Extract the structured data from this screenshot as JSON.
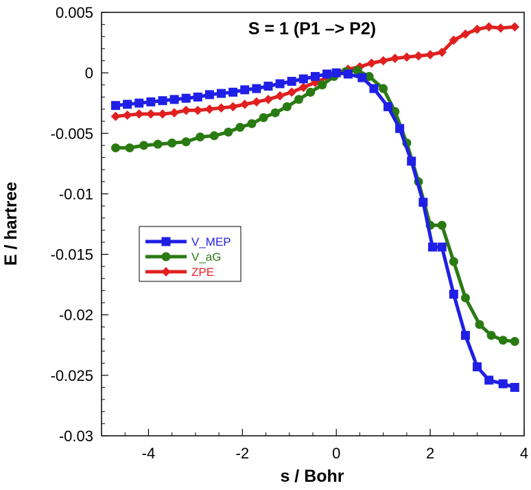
{
  "chart_data": {
    "type": "line",
    "title": "S = 1 (P1 –> P2)",
    "xlabel": "s / Bohr",
    "ylabel": "E / hartree",
    "xlim": [
      -5,
      4
    ],
    "ylim": [
      -0.03,
      0.005
    ],
    "xticks": [
      -4,
      -2,
      0,
      2,
      4
    ],
    "xtick_labels": [
      "-4",
      "-2",
      "0",
      "2",
      "4"
    ],
    "yticks": [
      0.005,
      0,
      -0.005,
      -0.01,
      -0.015,
      -0.02,
      -0.025,
      -0.03
    ],
    "ytick_labels": [
      "0.005",
      "0",
      "-0.005",
      "-0.01",
      "-0.015",
      "-0.02",
      "-0.025",
      "-0.03"
    ],
    "grid": false,
    "legend_position": "middle-left",
    "series": [
      {
        "name": "V_MEP",
        "color": "#1f1fe6",
        "marker": "square",
        "x": [
          -4.7,
          -4.45,
          -4.2,
          -3.95,
          -3.7,
          -3.45,
          -3.2,
          -2.95,
          -2.7,
          -2.45,
          -2.2,
          -1.95,
          -1.7,
          -1.45,
          -1.2,
          -0.95,
          -0.7,
          -0.45,
          -0.2,
          0.0,
          0.25,
          0.55,
          0.8,
          1.1,
          1.35,
          1.6,
          1.85,
          2.05,
          2.25,
          2.5,
          2.75,
          3.0,
          3.25,
          3.55,
          3.8
        ],
        "y": [
          -0.0027,
          -0.0026,
          -0.0025,
          -0.0024,
          -0.0023,
          -0.0022,
          -0.0021,
          -0.002,
          -0.0018,
          -0.0017,
          -0.0016,
          -0.0014,
          -0.0013,
          -0.0011,
          -0.0009,
          -0.0007,
          -0.0005,
          -0.0003,
          -0.0001,
          0.0,
          -0.0001,
          -0.0004,
          -0.0013,
          -0.0028,
          -0.0046,
          -0.0073,
          -0.0107,
          -0.0144,
          -0.0144,
          -0.0183,
          -0.0217,
          -0.0243,
          -0.0254,
          -0.0257,
          -0.026
        ]
      },
      {
        "name": "V_aG",
        "color": "#2a7a12",
        "marker": "circle",
        "x": [
          -4.7,
          -4.4,
          -4.1,
          -3.8,
          -3.5,
          -3.2,
          -2.9,
          -2.6,
          -2.3,
          -2.05,
          -1.8,
          -1.55,
          -1.3,
          -1.05,
          -0.8,
          -0.55,
          -0.3,
          -0.05,
          0.2,
          0.45,
          0.7,
          1.0,
          1.25,
          1.5,
          1.75,
          2.0,
          2.25,
          2.5,
          2.75,
          3.05,
          3.3,
          3.55,
          3.8
        ],
        "y": [
          -0.0062,
          -0.0062,
          -0.006,
          -0.0059,
          -0.0058,
          -0.0057,
          -0.0053,
          -0.0052,
          -0.0049,
          -0.0045,
          -0.0042,
          -0.0037,
          -0.0033,
          -0.0028,
          -0.0022,
          -0.0016,
          -0.001,
          -0.0003,
          0.0001,
          0.0002,
          -0.0003,
          -0.0013,
          -0.0032,
          -0.0058,
          -0.009,
          -0.0126,
          -0.0126,
          -0.0156,
          -0.0186,
          -0.0208,
          -0.0217,
          -0.0221,
          -0.0222
        ]
      },
      {
        "name": "ZPE",
        "color": "#e02020",
        "marker": "diamond",
        "x": [
          -4.7,
          -4.45,
          -4.2,
          -3.95,
          -3.7,
          -3.45,
          -3.2,
          -2.95,
          -2.7,
          -2.45,
          -2.2,
          -1.95,
          -1.7,
          -1.45,
          -1.2,
          -0.95,
          -0.7,
          -0.45,
          -0.2,
          0.0,
          0.25,
          0.5,
          0.75,
          1.0,
          1.25,
          1.5,
          1.75,
          2.0,
          2.25,
          2.5,
          2.75,
          3.0,
          3.25,
          3.5,
          3.8
        ],
        "y": [
          -0.0036,
          -0.0035,
          -0.0034,
          -0.0034,
          -0.0034,
          -0.0033,
          -0.0031,
          -0.0031,
          -0.003,
          -0.0029,
          -0.0028,
          -0.0026,
          -0.0024,
          -0.0022,
          -0.0019,
          -0.0016,
          -0.0012,
          -0.0008,
          -0.0004,
          0.0,
          0.0003,
          0.0005,
          0.0008,
          0.001,
          0.0012,
          0.0013,
          0.0014,
          0.0015,
          0.0017,
          0.0027,
          0.0032,
          0.0036,
          0.0038,
          0.0037,
          0.0038
        ]
      }
    ]
  }
}
